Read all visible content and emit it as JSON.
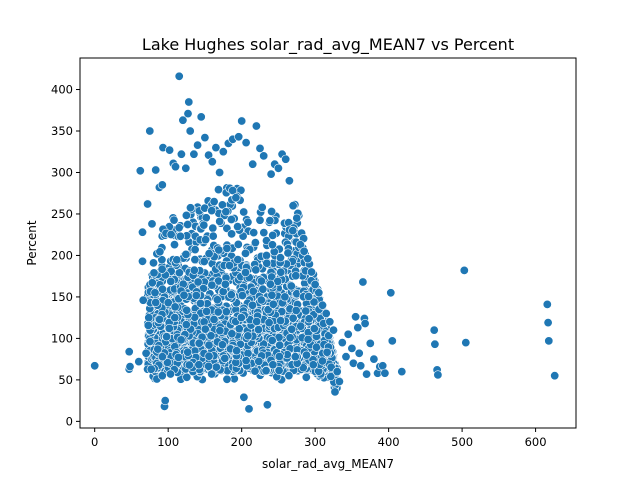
{
  "chart_data": {
    "type": "scatter",
    "title": "Lake Hughes solar_rad_avg_MEAN7 vs Percent",
    "xlabel": "solar_rad_avg_MEAN7",
    "ylabel": "Percent",
    "xlim": [
      -20,
      655
    ],
    "ylim": [
      -8,
      438
    ],
    "xticks": [
      0,
      100,
      200,
      300,
      400,
      500,
      600
    ],
    "yticks": [
      0,
      50,
      100,
      150,
      200,
      250,
      300,
      350,
      400
    ],
    "grid": false,
    "colors": {
      "point": "#1f77b4",
      "point_edge": "#ffffff"
    },
    "cluster": {
      "description": "dense cloud of several thousand points",
      "x_range": [
        60,
        330
      ],
      "y_range": [
        15,
        420
      ]
    },
    "points": [
      [
        0,
        67
      ],
      [
        47,
        84
      ],
      [
        47,
        63
      ],
      [
        48,
        66
      ],
      [
        60,
        72
      ],
      [
        62,
        302
      ],
      [
        65,
        228
      ],
      [
        65,
        193
      ],
      [
        66,
        146
      ],
      [
        70,
        82
      ],
      [
        72,
        262
      ],
      [
        75,
        350
      ],
      [
        78,
        238
      ],
      [
        80,
        191
      ],
      [
        82,
        155
      ],
      [
        83,
        303
      ],
      [
        88,
        282
      ],
      [
        92,
        285
      ],
      [
        93,
        330
      ],
      [
        95,
        18
      ],
      [
        96,
        25
      ],
      [
        102,
        327
      ],
      [
        107,
        311
      ],
      [
        110,
        307
      ],
      [
        115,
        416
      ],
      [
        118,
        322
      ],
      [
        120,
        363
      ],
      [
        124,
        305
      ],
      [
        127,
        371
      ],
      [
        128,
        385
      ],
      [
        130,
        350
      ],
      [
        135,
        322
      ],
      [
        140,
        333
      ],
      [
        145,
        367
      ],
      [
        150,
        342
      ],
      [
        155,
        321
      ],
      [
        160,
        313
      ],
      [
        165,
        330
      ],
      [
        170,
        300
      ],
      [
        175,
        325
      ],
      [
        182,
        335
      ],
      [
        188,
        340
      ],
      [
        196,
        343
      ],
      [
        200,
        362
      ],
      [
        203,
        29
      ],
      [
        206,
        336
      ],
      [
        210,
        15
      ],
      [
        215,
        310
      ],
      [
        220,
        356
      ],
      [
        225,
        329
      ],
      [
        230,
        320
      ],
      [
        235,
        20
      ],
      [
        240,
        298
      ],
      [
        245,
        310
      ],
      [
        250,
        305
      ],
      [
        255,
        322
      ],
      [
        260,
        316
      ],
      [
        265,
        290
      ],
      [
        270,
        260
      ],
      [
        275,
        245
      ],
      [
        280,
        213
      ],
      [
        285,
        205
      ],
      [
        290,
        196
      ],
      [
        295,
        180
      ],
      [
        300,
        165
      ],
      [
        305,
        155
      ],
      [
        310,
        140
      ],
      [
        315,
        130
      ],
      [
        320,
        120
      ],
      [
        325,
        110
      ],
      [
        330,
        60
      ],
      [
        333,
        48
      ],
      [
        337,
        95
      ],
      [
        342,
        78
      ],
      [
        345,
        105
      ],
      [
        350,
        88
      ],
      [
        352,
        70
      ],
      [
        355,
        126
      ],
      [
        358,
        113
      ],
      [
        360,
        82
      ],
      [
        362,
        67
      ],
      [
        365,
        168
      ],
      [
        367,
        124
      ],
      [
        368,
        118
      ],
      [
        370,
        57
      ],
      [
        375,
        94
      ],
      [
        380,
        75
      ],
      [
        385,
        58
      ],
      [
        388,
        66
      ],
      [
        392,
        67
      ],
      [
        395,
        58
      ],
      [
        403,
        155
      ],
      [
        405,
        97
      ],
      [
        418,
        60
      ],
      [
        462,
        110
      ],
      [
        463,
        93
      ],
      [
        466,
        62
      ],
      [
        467,
        56
      ],
      [
        503,
        182
      ],
      [
        505,
        95
      ],
      [
        616,
        141
      ],
      [
        617,
        119
      ],
      [
        618,
        97
      ],
      [
        626,
        55
      ]
    ]
  }
}
